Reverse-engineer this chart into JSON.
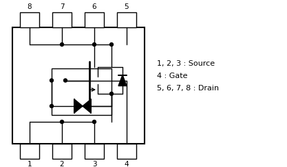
{
  "bg_color": "#ffffff",
  "line_color": "#000000",
  "text_color": "#000000",
  "legend_text_lines": [
    "1, 2, 3 : Source",
    "4 : Gate",
    "5, 6, 7, 8 : Drain"
  ],
  "pin_labels_top": [
    "8",
    "7",
    "6",
    "5"
  ],
  "pin_labels_bottom": [
    "1",
    "2",
    "3",
    "4"
  ]
}
